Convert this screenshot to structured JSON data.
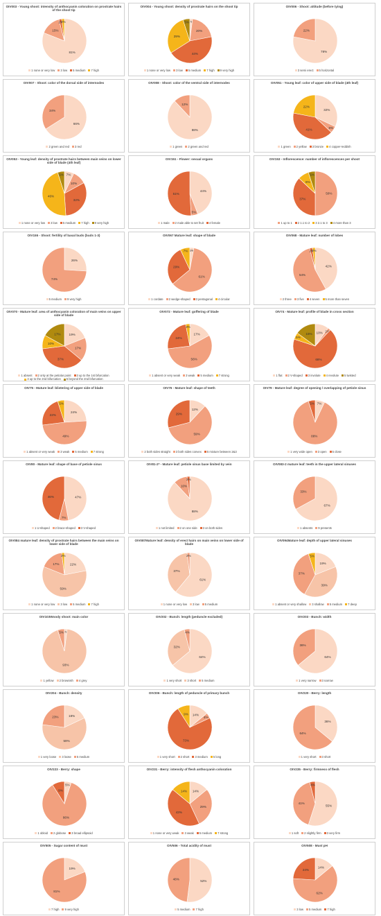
{
  "colors": {
    "c1": "#fbd8c4",
    "c2": "#f2a07e",
    "c3": "#e2693a",
    "c4": "#f5b51a",
    "c5": "#b08a0f",
    "c6": "#f7c4a8",
    "c7": "#d55f2a"
  },
  "chart_data": [
    {
      "type": "pie",
      "title": "OIV003 - Young shoot: intensity of anthocyanin coloration on prostrate hairs of the shoot tip",
      "categories": [
        "1 none or very low",
        "3 low",
        "5 medium",
        "7 high"
      ],
      "values": [
        81,
        15,
        2,
        2
      ],
      "labels": [
        "81%",
        "15%",
        "2%",
        "2%"
      ],
      "colors": [
        "#fbd8c4",
        "#f2a07e",
        "#e2693a",
        "#f5b51a"
      ]
    },
    {
      "type": "pie",
      "title": "OIV004 - Young shoot: density of prostrate hairs on the shoot tip",
      "categories": [
        "1 none or very low",
        "3 low",
        "5 medium",
        "7 high",
        "9 very high"
      ],
      "values": [
        2,
        20,
        44,
        29,
        5
      ],
      "labels": [
        "2%",
        "20%",
        "44%",
        "29%",
        "5%"
      ],
      "colors": [
        "#fbd8c4",
        "#f2a07e",
        "#e2693a",
        "#f5b51a",
        "#b08a0f"
      ]
    },
    {
      "type": "pie",
      "title": "OIV006 - Shoot: attitude (before tying)",
      "categories": [
        "3 semi erect",
        "5 horizontal"
      ],
      "values": [
        78,
        22
      ],
      "labels": [
        "78%",
        "22%"
      ],
      "colors": [
        "#fbd8c4",
        "#f2a07e"
      ]
    },
    {
      "type": "pie",
      "title": "OIV007 - Shoot: color of the dorsal side of internodes",
      "categories": [
        "2 green and red",
        "3 red"
      ],
      "values": [
        66,
        34
      ],
      "labels": [
        "66%",
        "34%"
      ],
      "colors": [
        "#fbd8c4",
        "#f2a07e"
      ]
    },
    {
      "type": "pie",
      "title": "OIV008 - Shoot: color of the ventral side of internodes",
      "categories": [
        "1 green",
        "2 green and red"
      ],
      "values": [
        88,
        12
      ],
      "labels": [
        "88%",
        "12%"
      ],
      "colors": [
        "#fbd8c4",
        "#f2a07e"
      ]
    },
    {
      "type": "pie",
      "title": "OIV051 - Young leaf: color of upper side of blade (4th leaf)",
      "categories": [
        "1 green",
        "2 yellow",
        "3 bronze",
        "4 copper-reddish"
      ],
      "values": [
        32,
        5,
        41,
        22
      ],
      "labels": [
        "32%",
        "5%",
        "41%",
        "22%"
      ],
      "colors": [
        "#fbd8c4",
        "#f2a07e",
        "#e2693a",
        "#f5b51a"
      ]
    },
    {
      "type": "pie",
      "title": "OIV053 - Young leaf: density of prostrate hairs between main veins on lower side of blade (4th leaf)",
      "categories": [
        "1 none or very low",
        "3 low",
        "5 medium",
        "7 high",
        "9 very high"
      ],
      "values": [
        7,
        10,
        32,
        46,
        5
      ],
      "labels": [
        "7%",
        "10%",
        "32%",
        "46%",
        "5%"
      ],
      "colors": [
        "#fbd8c4",
        "#f2a07e",
        "#e2693a",
        "#f5b51a",
        "#b08a0f"
      ]
    },
    {
      "type": "pie",
      "title": "OIV151 - Flower: sexual organs",
      "categories": [
        "1 male",
        "2 male able to set fruit",
        "4 female"
      ],
      "values": [
        44,
        5,
        51
      ],
      "labels": [
        "44%",
        "5%",
        "51%"
      ],
      "colors": [
        "#fbd8c4",
        "#f2a07e",
        "#e2693a"
      ]
    },
    {
      "type": "pie",
      "title": "OIV153 - Inflorescence: number of inflorescences per shoot",
      "categories": [
        "1 up to 1",
        "2 1.1 to 2",
        "3 2.1 to 3",
        "4 more than 3"
      ],
      "values": [
        50,
        37,
        8,
        5
      ],
      "labels": [
        "50%",
        "37%",
        "8%",
        "5%"
      ],
      "colors": [
        "#f2a07e",
        "#e2693a",
        "#f5b51a",
        "#b08a0f"
      ]
    },
    {
      "type": "pie",
      "title": "OIV155 - Shoot: fertility of basal buds (buds 1-3)",
      "categories": [
        "5 medium",
        "9 very high"
      ],
      "values": [
        26,
        74
      ],
      "labels": [
        "26%",
        "74%"
      ],
      "colors": [
        "#fbd8c4",
        "#f2a07e"
      ]
    },
    {
      "type": "pie",
      "title": "OIV067 Mature leaf: shape of blade",
      "categories": [
        "1 cordate",
        "2 wedge-shaped",
        "3 pentagonal",
        "4 circular"
      ],
      "values": [
        3,
        61,
        29,
        7
      ],
      "labels": [
        "3%",
        "61%",
        "29%",
        "7%"
      ],
      "colors": [
        "#fbd8c4",
        "#f2a07e",
        "#e2693a",
        "#f5b51a"
      ]
    },
    {
      "type": "pie",
      "title": "OIV068 - Mature leaf: number of lobes",
      "categories": [
        "2 three",
        "3 five",
        "4 seven",
        "5 more than seven"
      ],
      "values": [
        42,
        54,
        2,
        2
      ],
      "labels": [
        "42%",
        "54%",
        "2%",
        "2%"
      ],
      "colors": [
        "#fbd8c4",
        "#f2a07e",
        "#e2693a",
        "#f5b51a"
      ]
    },
    {
      "type": "pie",
      "title": "OIV070 - Mature leaf: area of anthocyanin coloration of main veins on upper side of blade",
      "categories": [
        "1 absent",
        "2 only at the petiolar point",
        "3 up to the 1st bifurcation",
        "4 up to the 2nd bifurcation",
        "5 beyond the 2nd bifurcation"
      ],
      "values": [
        19,
        17,
        37,
        10,
        17
      ],
      "labels": [
        "19%",
        "17%",
        "37%",
        "10%",
        "17%"
      ],
      "colors": [
        "#fbd8c4",
        "#f2a07e",
        "#e2693a",
        "#f5b51a",
        "#b08a0f"
      ]
    },
    {
      "type": "pie",
      "title": "OIV072 - Mature leaf: goffering of blade",
      "categories": [
        "1 absent or very weak",
        "3 weak",
        "5 medium",
        "7 strong"
      ],
      "values": [
        17,
        56,
        24,
        3
      ],
      "labels": [
        "17%",
        "56%",
        "24%",
        "3%"
      ],
      "colors": [
        "#fbd8c4",
        "#f2a07e",
        "#e2693a",
        "#f5b51a"
      ]
    },
    {
      "type": "pie",
      "title": "OIV74 - Mature leaf: profile of blade in cross section",
      "categories": [
        "1 flat",
        "2 V-shaped",
        "3 involute",
        "4 revolute",
        "5 twisted"
      ],
      "values": [
        10,
        2,
        68,
        5,
        15
      ],
      "labels": [
        "10%",
        "2%",
        "68%",
        "5%",
        "15%"
      ],
      "colors": [
        "#fbd8c4",
        "#f2a07e",
        "#e2693a",
        "#f5b51a",
        "#b08a0f"
      ]
    },
    {
      "type": "pie",
      "title": "OIV75 - Mature leaf: blistering of upper side of blade",
      "categories": [
        "1 absent or very weak",
        "3 weak",
        "5 medium",
        "7 strong"
      ],
      "values": [
        24,
        49,
        22,
        5
      ],
      "labels": [
        "24%",
        "49%",
        "22%",
        "5%"
      ],
      "colors": [
        "#fbd8c4",
        "#f2a07e",
        "#e2693a",
        "#f5b51a"
      ]
    },
    {
      "type": "pie",
      "title": "OIV76 - Mature leaf: shape of teeth",
      "categories": [
        "2 both sides straight",
        "3 both sides convex",
        "5 mixture between 2&3"
      ],
      "values": [
        12,
        59,
        29
      ],
      "labels": [
        "12%",
        "59%",
        "29%"
      ],
      "colors": [
        "#fbd8c4",
        "#f2a07e",
        "#e2693a"
      ]
    },
    {
      "type": "pie",
      "title": "OIV79 - Mature leaf: degree of opening / overlapping of petiole sinus",
      "categories": [
        "1 very wide open",
        "3 open",
        "5 close"
      ],
      "values": [
        7,
        88,
        5
      ],
      "labels": [
        "7%",
        "88%",
        "5%"
      ],
      "colors": [
        "#fbd8c4",
        "#f2a07e",
        "#e2693a"
      ]
    },
    {
      "type": "pie",
      "title": "OIV80 - Mature leaf: shape of base of petiole sinus",
      "categories": [
        "1 U-shaped",
        "2 brace-shaped",
        "3 V-shaped"
      ],
      "values": [
        47,
        7,
        46
      ],
      "labels": [
        "47%",
        "7%",
        "46%"
      ],
      "colors": [
        "#fbd8c4",
        "#f2a07e",
        "#e2693a"
      ]
    },
    {
      "type": "pie",
      "title": "OIV81-2* - Mature leaf: petiole sinus base limited by vein",
      "categories": [
        "1 not limited",
        "2 on one side",
        "3 on both sides"
      ],
      "values": [
        88,
        10,
        2
      ],
      "labels": [
        "88%",
        "10%",
        "2%"
      ],
      "colors": [
        "#fbd8c4",
        "#f2a07e",
        "#e2693a"
      ]
    },
    {
      "type": "pie",
      "title": "OIV083-2 mature leaf: teeth in the upper lateral sinuses",
      "categories": [
        "1 absents",
        "9 presents"
      ],
      "values": [
        67,
        33
      ],
      "labels": [
        "67%",
        "33%"
      ],
      "colors": [
        "#fbd8c4",
        "#f2a07e"
      ]
    },
    {
      "type": "pie",
      "title": "OIV084 mature leaf: density of prostrate hairs between the main veins on lower side of blade",
      "categories": [
        "1 none or very low",
        "3 low",
        "5 medium",
        "7 high"
      ],
      "values": [
        22,
        59,
        17,
        2
      ],
      "labels": [
        "22%",
        "59%",
        "17%",
        "2%"
      ],
      "colors": [
        "#fbd8c4",
        "#f7c4a8",
        "#f2a07e",
        "#f5b51a"
      ]
    },
    {
      "type": "pie",
      "title": "OIV087Mature leaf: density of erect hairs on main veins on lower side of blade",
      "categories": [
        "1 none or very low",
        "3 low",
        "5 medium"
      ],
      "values": [
        61,
        37,
        2
      ],
      "labels": [
        "61%",
        "37%",
        "2%"
      ],
      "colors": [
        "#fbd8c4",
        "#f7c4a8",
        "#f2a07e"
      ]
    },
    {
      "type": "pie",
      "title": "OIV094Mature leaf: depth of upper lateral sinuses",
      "categories": [
        "1 absent or very shallow",
        "3 shallow",
        "5 medium",
        "7 deep"
      ],
      "values": [
        19,
        39,
        37,
        5
      ],
      "labels": [
        "19%",
        "39%",
        "37%",
        "5%"
      ],
      "colors": [
        "#fbd8c4",
        "#f7c4a8",
        "#f2a07e",
        "#f5b51a"
      ]
    },
    {
      "type": "pie",
      "title": "OIV103Woody shoot: main color",
      "categories": [
        "1 yellow",
        "2 brownish",
        "4 grey"
      ],
      "values": [
        2,
        93,
        5
      ],
      "labels": [
        "2%",
        "93%",
        "5%"
      ],
      "colors": [
        "#fbd8c4",
        "#f7c4a8",
        "#f2a07e"
      ]
    },
    {
      "type": "pie",
      "title": "OIV202 - Bunch: length (peduncle excluded)",
      "categories": [
        "1 very short",
        "3 short",
        "5 medium"
      ],
      "values": [
        64,
        32,
        4
      ],
      "labels": [
        "64%",
        "32%",
        "4%"
      ],
      "colors": [
        "#fbd8c4",
        "#f7c4a8",
        "#f2a07e"
      ]
    },
    {
      "type": "pie",
      "title": "OIV203 - Bunch: width",
      "categories": [
        "1 very narrow",
        "3 narrow"
      ],
      "values": [
        64,
        36
      ],
      "labels": [
        "64%",
        "36%"
      ],
      "colors": [
        "#fbd8c4",
        "#f2a07e"
      ]
    },
    {
      "type": "pie",
      "title": "OIV204 - Bunch: density",
      "categories": [
        "1 very loose",
        "3 loose",
        "5 medium"
      ],
      "values": [
        18,
        59,
        23
      ],
      "labels": [
        "18%",
        "59%",
        "23%"
      ],
      "colors": [
        "#fbd8c4",
        "#f7c4a8",
        "#f2a07e"
      ]
    },
    {
      "type": "pie",
      "title": "OIV206 - Bunch: length of peduncle of primary bunch",
      "categories": [
        "1 very short",
        "2 short",
        "3 medium",
        "5 long"
      ],
      "values": [
        14,
        4,
        73,
        9
      ],
      "labels": [
        "14%",
        "4%",
        "73%",
        "9%"
      ],
      "colors": [
        "#fbd8c4",
        "#f2a07e",
        "#e2693a",
        "#f5b51a"
      ]
    },
    {
      "type": "pie",
      "title": "OIV220 - Berry: length",
      "categories": [
        "1 very short",
        "3 short"
      ],
      "values": [
        36,
        64
      ],
      "labels": [
        "36%",
        "64%"
      ],
      "colors": [
        "#fbd8c4",
        "#f2a07e"
      ]
    },
    {
      "type": "pie",
      "title": "OIV223 - Berry: shape",
      "categories": [
        "1 obloid",
        "2 globose",
        "3 broad ellipsoid"
      ],
      "values": [
        5,
        86,
        9
      ],
      "labels": [
        "5%",
        "86%",
        "9%"
      ],
      "colors": [
        "#fbd8c4",
        "#f2a07e",
        "#e2693a"
      ]
    },
    {
      "type": "pie",
      "title": "OIV231 - Berry: intensity of flesh anthocyanin coloration",
      "categories": [
        "1 none or very weak",
        "3 weak",
        "5 medium",
        "7 strong"
      ],
      "values": [
        14,
        29,
        43,
        14
      ],
      "labels": [
        "14%",
        "29%",
        "43%",
        "14%"
      ],
      "colors": [
        "#fbd8c4",
        "#f2a07e",
        "#e2693a",
        "#f5b51a"
      ]
    },
    {
      "type": "pie",
      "title": "OIV235 - Berry: firmness of flesh",
      "categories": [
        "1 soft",
        "2 slightly firm",
        "3 very firm"
      ],
      "values": [
        55,
        41,
        4
      ],
      "labels": [
        "55%",
        "41%",
        "4%"
      ],
      "colors": [
        "#fbd8c4",
        "#f2a07e",
        "#e2693a"
      ]
    },
    {
      "type": "pie",
      "title": "OIV505 - Sugar content of must",
      "categories": [
        "7 high",
        "9 very high"
      ],
      "values": [
        19,
        81
      ],
      "labels": [
        "19%",
        "81%"
      ],
      "colors": [
        "#fbd8c4",
        "#f2a07e"
      ]
    },
    {
      "type": "pie",
      "title": "OIV506 - Total acidity of must",
      "categories": [
        "5 medium",
        "7 high"
      ],
      "values": [
        52,
        48
      ],
      "labels": [
        "52%",
        "48%"
      ],
      "colors": [
        "#fbd8c4",
        "#f2a07e"
      ]
    },
    {
      "type": "pie",
      "title": "OIV508 - Must pH",
      "categories": [
        "3 low",
        "5 medium",
        "7 high"
      ],
      "values": [
        14,
        62,
        24
      ],
      "labels": [
        "14%",
        "62%",
        "24%"
      ],
      "colors": [
        "#fbd8c4",
        "#f2a07e",
        "#e2693a"
      ]
    }
  ]
}
